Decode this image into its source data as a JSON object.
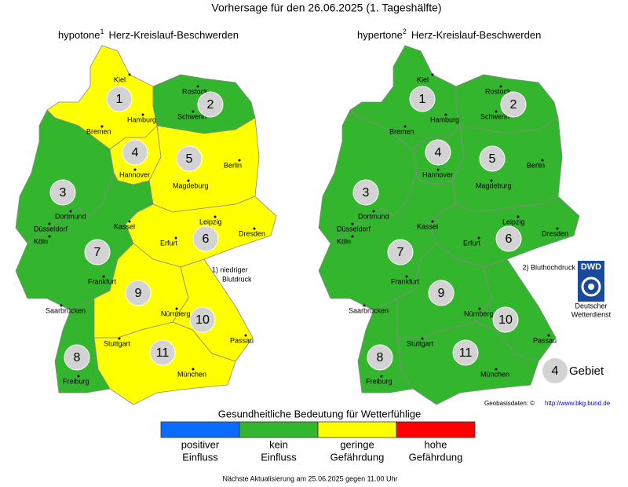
{
  "header": {
    "title": "Vorhersage für den 26.06.2025 (1. Tageshälfte)"
  },
  "maps": [
    {
      "title": "hypotone",
      "footnote_mark": "1",
      "subtitle": "Herz-Kreislauf-Beschwerden",
      "note": [
        "1) niedriger",
        "Blutdruck"
      ],
      "region_colors": [
        "#ffff00",
        "#33b52e",
        "#33b52e",
        "#ffff00",
        "#ffff00",
        "#ffff00",
        "#33b52e",
        "#33b52e",
        "#ffff00",
        "#ffff00",
        "#ffff00"
      ]
    },
    {
      "title": "hypertone",
      "footnote_mark": "2",
      "subtitle": "Herz-Kreislauf-Beschwerden",
      "note": [
        "2) Bluthochdruck"
      ],
      "region_colors": [
        "#33b52e",
        "#33b52e",
        "#33b52e",
        "#33b52e",
        "#33b52e",
        "#33b52e",
        "#33b52e",
        "#33b52e",
        "#33b52e",
        "#33b52e",
        "#33b52e"
      ]
    }
  ],
  "regions": [
    "1",
    "2",
    "3",
    "4",
    "5",
    "6",
    "7",
    "8",
    "9",
    "10",
    "11"
  ],
  "cities": [
    "Kiel",
    "Rostock",
    "Hamburg",
    "Schwerin",
    "Bremen",
    "Hannover",
    "Berlin",
    "Magdeburg",
    "Dortmund",
    "Düsseldorf",
    "Köln",
    "Kassel",
    "Leipzig",
    "Dresden",
    "Erfurt",
    "Frankfurt",
    "Saarbrücken",
    "Nürnberg",
    "Stuttgart",
    "Passau",
    "München",
    "Freiburg"
  ],
  "dwd": {
    "logo": "DWD",
    "name": [
      "Deutscher",
      "Wetterdienst"
    ]
  },
  "region_legend": {
    "sample": "4",
    "label": "Gebiet"
  },
  "credit": {
    "text": "Geobasisdaten: ©",
    "link": "http://www.bkg.bund.de"
  },
  "legend": {
    "title": "Gesundheitliche Bedeutung für Wetterfühlige",
    "items": [
      {
        "label": [
          "positiver",
          "Einfluss"
        ],
        "color": "#0a6cff"
      },
      {
        "label": [
          "kein",
          "Einfluss"
        ],
        "color": "#33b52e"
      },
      {
        "label": [
          "geringe",
          "Gefährdung"
        ],
        "color": "#ffff00"
      },
      {
        "label": [
          "hohe",
          "Gefährdung"
        ],
        "color": "#ff0000"
      }
    ]
  },
  "footer": "Nächste Aktualisierung am 25.06.2025 gegen 11.00 Uhr"
}
